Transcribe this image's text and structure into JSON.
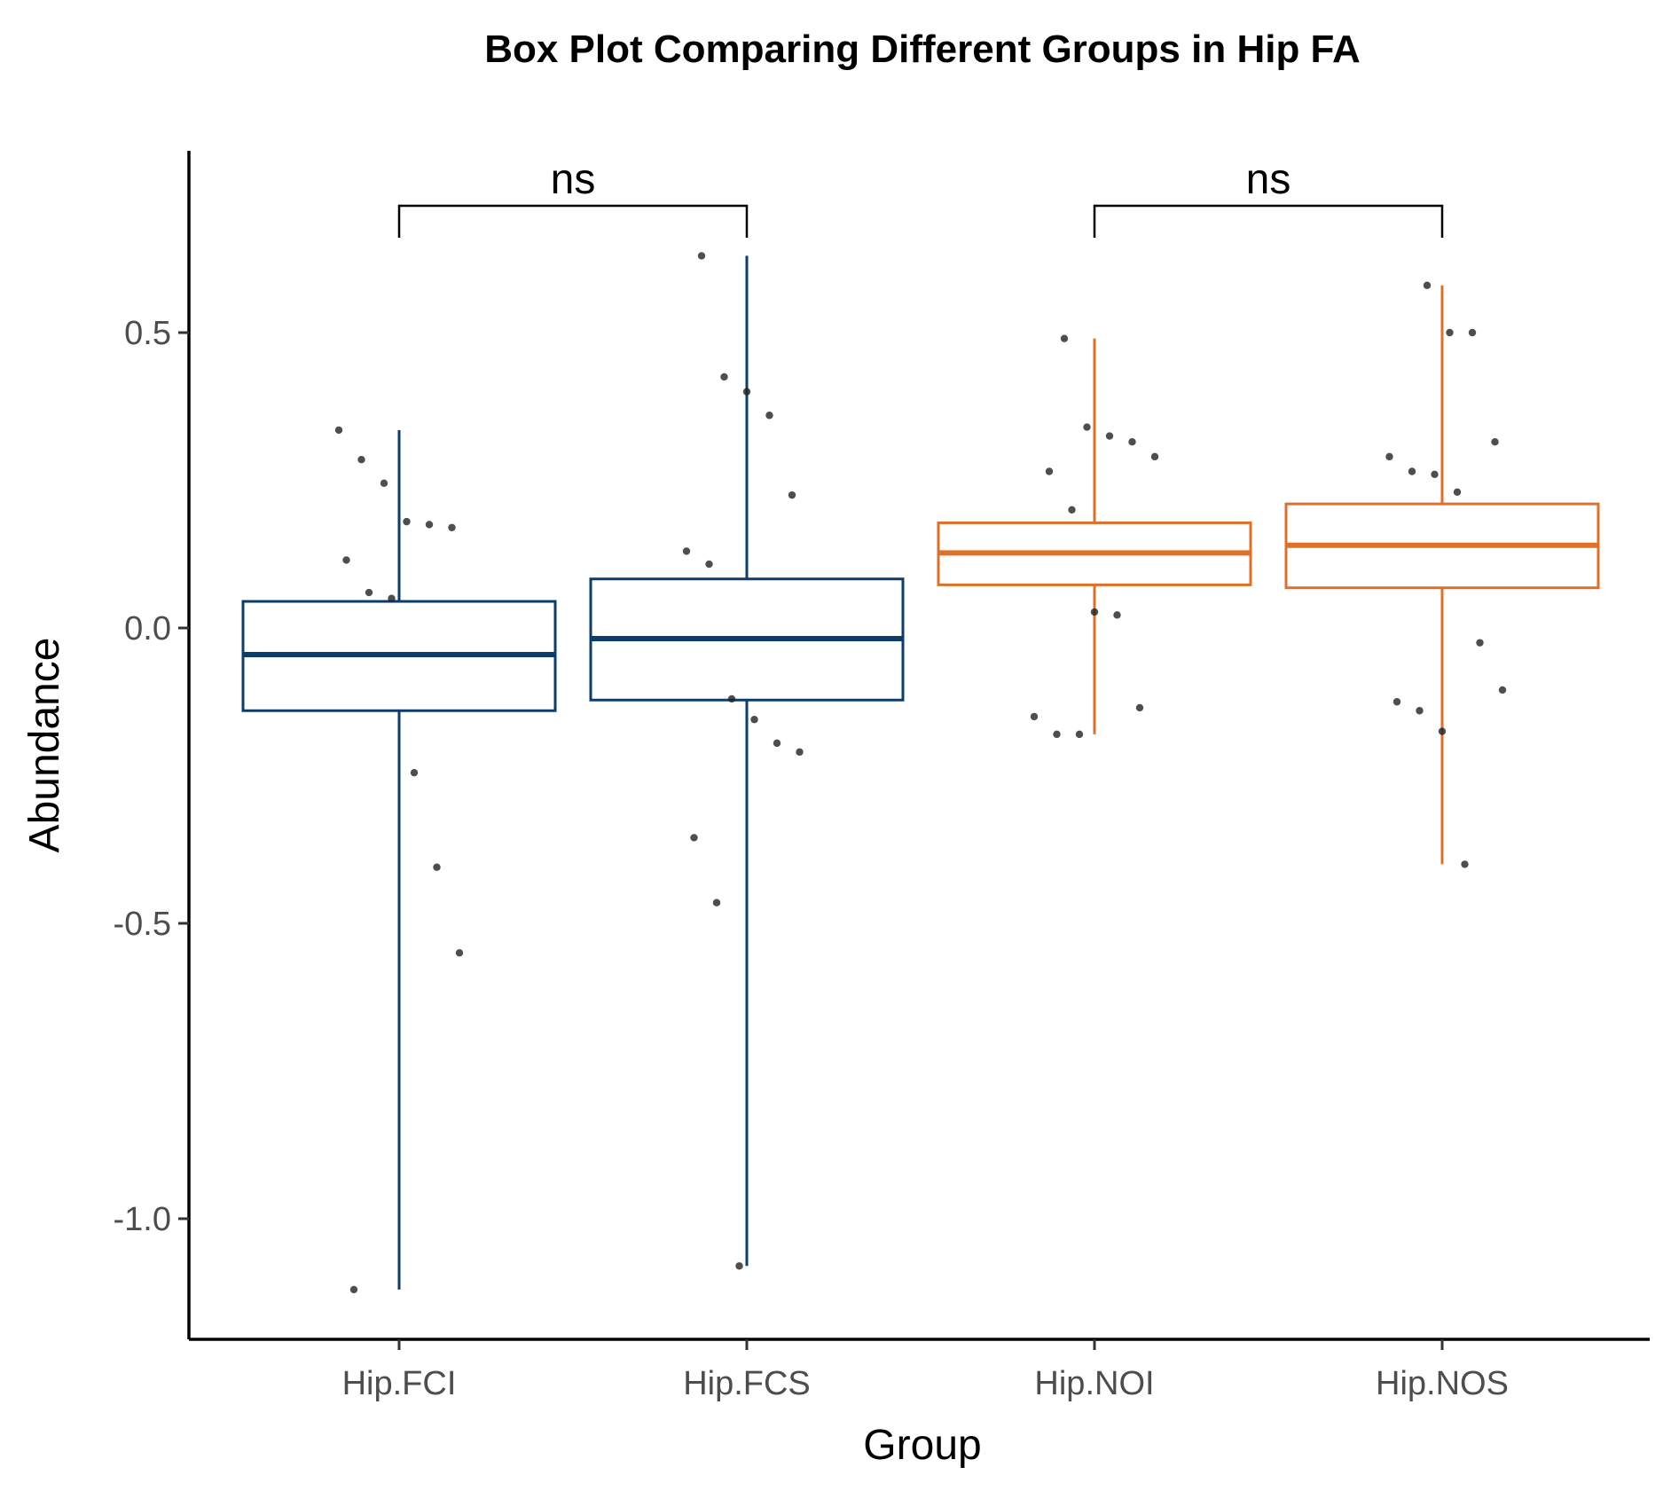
{
  "chart_data": {
    "type": "box",
    "title": "Box Plot Comparing Different Groups in Hip FA",
    "xlabel": "Group",
    "ylabel": "Abundance",
    "ylim": [
      -1.2,
      0.8
    ],
    "yticks": [
      0.5,
      0.0,
      -0.5,
      -1.0
    ],
    "ytick_labels": [
      "0.5",
      "0.0",
      "-0.5",
      "-1.0"
    ],
    "grid": false,
    "legend": "none",
    "categories": [
      "Hip.FCI",
      "Hip.FCS",
      "Hip.NOI",
      "Hip.NOS"
    ],
    "boxes": [
      {
        "group": "Hip.FCI",
        "color": "#0d3e6b",
        "whisker_low": -1.12,
        "q1": -0.14,
        "median": -0.045,
        "q3": 0.045,
        "whisker_high": 0.335
      },
      {
        "group": "Hip.FCS",
        "color": "#0d3e6b",
        "whisker_low": -1.08,
        "q1": -0.122,
        "median": -0.018,
        "q3": 0.083,
        "whisker_high": 0.63
      },
      {
        "group": "Hip.NOI",
        "color": "#e07028",
        "whisker_low": -0.18,
        "q1": 0.073,
        "median": 0.127,
        "q3": 0.178,
        "whisker_high": 0.49
      },
      {
        "group": "Hip.NOS",
        "color": "#e07028",
        "whisker_low": -0.4,
        "q1": 0.068,
        "median": 0.14,
        "q3": 0.21,
        "whisker_high": 0.58
      }
    ],
    "points": [
      {
        "group": "Hip.FCI",
        "values": [
          0.335,
          0.285,
          0.245,
          0.18,
          0.175,
          0.17,
          0.115,
          0.06,
          0.05,
          -0.245,
          -0.405,
          -0.55,
          -1.12
        ]
      },
      {
        "group": "Hip.FCS",
        "values": [
          0.63,
          0.425,
          0.4,
          0.36,
          0.225,
          0.13,
          0.108,
          -0.12,
          -0.155,
          -0.195,
          -0.21,
          -0.355,
          -0.465,
          -1.08
        ]
      },
      {
        "group": "Hip.NOI",
        "values": [
          0.49,
          0.34,
          0.325,
          0.315,
          0.29,
          0.265,
          0.2,
          0.027,
          0.022,
          -0.135,
          -0.15,
          -0.18,
          -0.18
        ]
      },
      {
        "group": "Hip.NOS",
        "values": [
          0.58,
          0.5,
          0.5,
          0.315,
          0.29,
          0.265,
          0.26,
          0.23,
          -0.025,
          -0.105,
          -0.125,
          -0.14,
          -0.175,
          -0.4
        ]
      }
    ],
    "comparisons": [
      {
        "groups": [
          "Hip.FCI",
          "Hip.FCS"
        ],
        "label": "ns"
      },
      {
        "groups": [
          "Hip.NOI",
          "Hip.NOS"
        ],
        "label": "ns"
      }
    ]
  }
}
